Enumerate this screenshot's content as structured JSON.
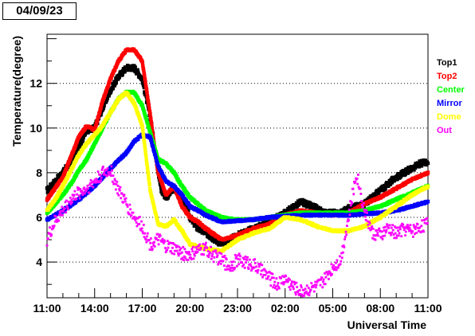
{
  "date_label": "04/09/23",
  "chart_data": {
    "type": "scatter",
    "ylabel": "Temperature(degree)",
    "xlabel": "Universal Time",
    "x_ticks": [
      "11:00",
      "14:00",
      "17:00",
      "20:00",
      "23:00",
      "02:00",
      "05:00",
      "08:00",
      "11:00"
    ],
    "y_ticks": [
      4,
      6,
      8,
      10,
      12
    ],
    "xlim_hours": [
      0,
      24
    ],
    "ylim": [
      2.4,
      14.2
    ],
    "grid": "horizontal dotted",
    "legend_position": "right",
    "series": [
      {
        "name": "Top1",
        "color": "#000000",
        "x": [
          0,
          0.5,
          1,
          1.5,
          2,
          2.5,
          3,
          3.5,
          4,
          4.5,
          5,
          5.5,
          6,
          6.5,
          7,
          7.2,
          7.5,
          8,
          8.5,
          9,
          9.5,
          10,
          11,
          12,
          13,
          14,
          15,
          16,
          17,
          17.5,
          18,
          18.5,
          19,
          20,
          21,
          21.5,
          22,
          22.5,
          23,
          23.5,
          24
        ],
        "y": [
          7.2,
          7.6,
          8.0,
          8.5,
          9.2,
          9.9,
          10.0,
          10.9,
          11.7,
          12.3,
          12.7,
          12.7,
          12.2,
          10.5,
          8.1,
          7.2,
          6.9,
          7.3,
          6.9,
          6.0,
          5.5,
          5.3,
          4.8,
          5.2,
          5.5,
          5.8,
          6.2,
          6.7,
          6.4,
          6.2,
          6.2,
          6.2,
          6.4,
          6.6,
          7.2,
          7.5,
          7.8,
          8.0,
          8.2,
          8.4,
          8.5
        ]
      },
      {
        "name": "Top2",
        "color": "#ff0000",
        "x": [
          0,
          0.5,
          1,
          1.5,
          2,
          2.5,
          3,
          3.5,
          4,
          4.5,
          5,
          5.5,
          6,
          6.5,
          7,
          7.5,
          8,
          8.5,
          9,
          9.5,
          10,
          11,
          12,
          13,
          14,
          15,
          16,
          17,
          18,
          19,
          20,
          21,
          22,
          23,
          24
        ],
        "y": [
          6.8,
          7.3,
          7.8,
          8.7,
          9.6,
          10.1,
          9.9,
          11.2,
          12.2,
          13.0,
          13.5,
          13.5,
          13.0,
          10.6,
          8.0,
          7.0,
          7.4,
          6.5,
          6.0,
          5.8,
          5.5,
          5.0,
          5.2,
          5.5,
          5.7,
          6.1,
          6.3,
          6.2,
          6.1,
          6.2,
          6.6,
          6.9,
          7.3,
          7.7,
          8.0
        ]
      },
      {
        "name": "Center",
        "color": "#00ff00",
        "x": [
          0,
          0.5,
          1,
          1.5,
          2,
          2.5,
          3,
          3.5,
          4,
          4.5,
          5,
          5.5,
          6,
          6.5,
          7,
          7.5,
          8,
          8.5,
          9,
          10,
          11,
          12,
          13,
          14,
          15,
          16,
          17,
          18,
          19,
          20,
          21,
          22,
          23,
          24
        ],
        "y": [
          6.2,
          6.6,
          7.0,
          7.5,
          8.1,
          8.6,
          9.3,
          10.0,
          10.7,
          11.3,
          11.6,
          11.6,
          11.0,
          9.8,
          8.6,
          8.4,
          8.0,
          7.4,
          6.9,
          6.3,
          6.0,
          5.9,
          5.9,
          6.0,
          6.1,
          6.2,
          6.2,
          6.2,
          6.2,
          6.3,
          6.5,
          6.8,
          7.1,
          7.4
        ]
      },
      {
        "name": "Mirror",
        "color": "#0000ff",
        "x": [
          0,
          1,
          2,
          3,
          4,
          5,
          5.5,
          6,
          6.5,
          7,
          7.5,
          8,
          8.5,
          9,
          10,
          11,
          12,
          13,
          14,
          15,
          16,
          17,
          18,
          19,
          20,
          21,
          22,
          23,
          24
        ],
        "y": [
          5.9,
          6.3,
          6.8,
          7.4,
          8.2,
          8.9,
          9.4,
          9.7,
          9.6,
          8.3,
          7.6,
          7.4,
          7.0,
          6.5,
          6.1,
          5.8,
          5.85,
          5.9,
          6.0,
          6.05,
          6.1,
          6.1,
          6.1,
          6.1,
          6.15,
          6.2,
          6.3,
          6.5,
          6.7
        ]
      },
      {
        "name": "Dome",
        "color": "#ffff00",
        "x": [
          0,
          0.5,
          1,
          1.5,
          2,
          2.5,
          3,
          3.5,
          4,
          4.5,
          5,
          5.5,
          6,
          6.5,
          7,
          7.5,
          8,
          8.5,
          9,
          10,
          11,
          12,
          13,
          14,
          15,
          16,
          17,
          18,
          19,
          20,
          21,
          22,
          23,
          24
        ],
        "y": [
          6.3,
          6.8,
          7.4,
          8.1,
          8.8,
          9.3,
          9.7,
          10.1,
          10.7,
          11.3,
          11.6,
          11.1,
          10.1,
          7.2,
          5.7,
          5.6,
          5.9,
          5.4,
          4.8,
          4.6,
          4.5,
          5.0,
          5.3,
          5.5,
          6.0,
          5.9,
          5.6,
          5.4,
          5.4,
          5.6,
          6.0,
          6.5,
          7.0,
          7.4
        ]
      },
      {
        "name": "Out",
        "color": "#ff00ff",
        "x": [
          0,
          0.5,
          1,
          1.5,
          2,
          2.5,
          3,
          3.5,
          4,
          4.5,
          5,
          5.5,
          6,
          6.5,
          7,
          7.5,
          8,
          8.5,
          9,
          9.5,
          10,
          10.5,
          11,
          11.5,
          12,
          12.5,
          13,
          13.5,
          14,
          14.5,
          15,
          15.5,
          16,
          16.5,
          17,
          17.5,
          18,
          18.5,
          19,
          19.5,
          20,
          20.5,
          21,
          21.5,
          22,
          22.5,
          23,
          23.5,
          24
        ],
        "y": [
          5.0,
          5.8,
          6.3,
          6.8,
          7.1,
          7.3,
          7.6,
          8.0,
          8.1,
          7.2,
          6.6,
          6.0,
          5.6,
          4.8,
          5.0,
          4.7,
          4.6,
          4.4,
          4.3,
          4.5,
          4.6,
          4.3,
          4.1,
          3.8,
          4.1,
          4.0,
          3.9,
          3.6,
          3.3,
          3.0,
          3.3,
          2.9,
          2.7,
          2.8,
          2.9,
          3.2,
          3.8,
          4.1,
          6.0,
          8.0,
          6.3,
          5.3,
          5.2,
          5.5,
          5.3,
          5.5,
          5.4,
          5.6,
          5.7
        ]
      }
    ]
  }
}
